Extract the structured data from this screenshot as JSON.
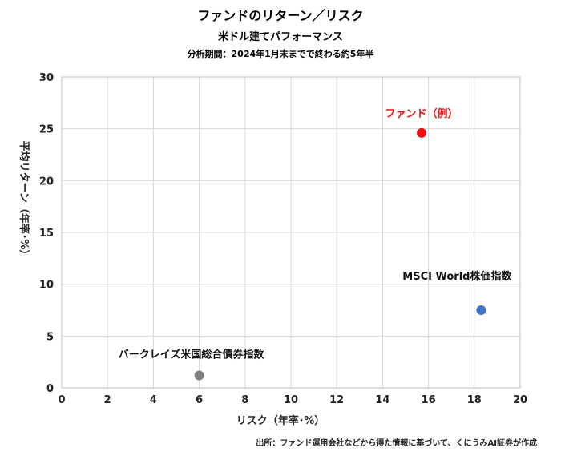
{
  "header": {
    "title": "ファンドのリターン／リスク",
    "subtitle": "米ドル建てパフォーマンス",
    "period": "分析期間：2024年1月末までで終わる約5年半"
  },
  "chart_data": {
    "type": "scatter",
    "xlabel": "リスク（年率･%）",
    "ylabel": "平均リターン（年率･%）",
    "xlim": [
      0,
      20
    ],
    "ylim": [
      0,
      30
    ],
    "x_ticks": [
      0,
      2,
      4,
      6,
      8,
      10,
      12,
      14,
      16,
      18,
      20
    ],
    "y_ticks": [
      0,
      5,
      10,
      15,
      20,
      25,
      30
    ],
    "grid": true,
    "legend": "none",
    "points": [
      {
        "label": "ファンド（例）",
        "x": 15.7,
        "y": 24.6,
        "color": "#ee1111",
        "label_color": "#ee1111"
      },
      {
        "label": "MSCI World株価指数",
        "x": 18.3,
        "y": 7.5,
        "color": "#4472c4",
        "label_color": "#111111"
      },
      {
        "label": "バークレイズ米国総合債券指数",
        "x": 6.0,
        "y": 1.2,
        "color": "#7f7f7f",
        "label_color": "#111111"
      }
    ]
  },
  "footer": {
    "source": "出所：ファンド運用会社などから得た情報に基づいて、くにうみAI証券が作成"
  }
}
